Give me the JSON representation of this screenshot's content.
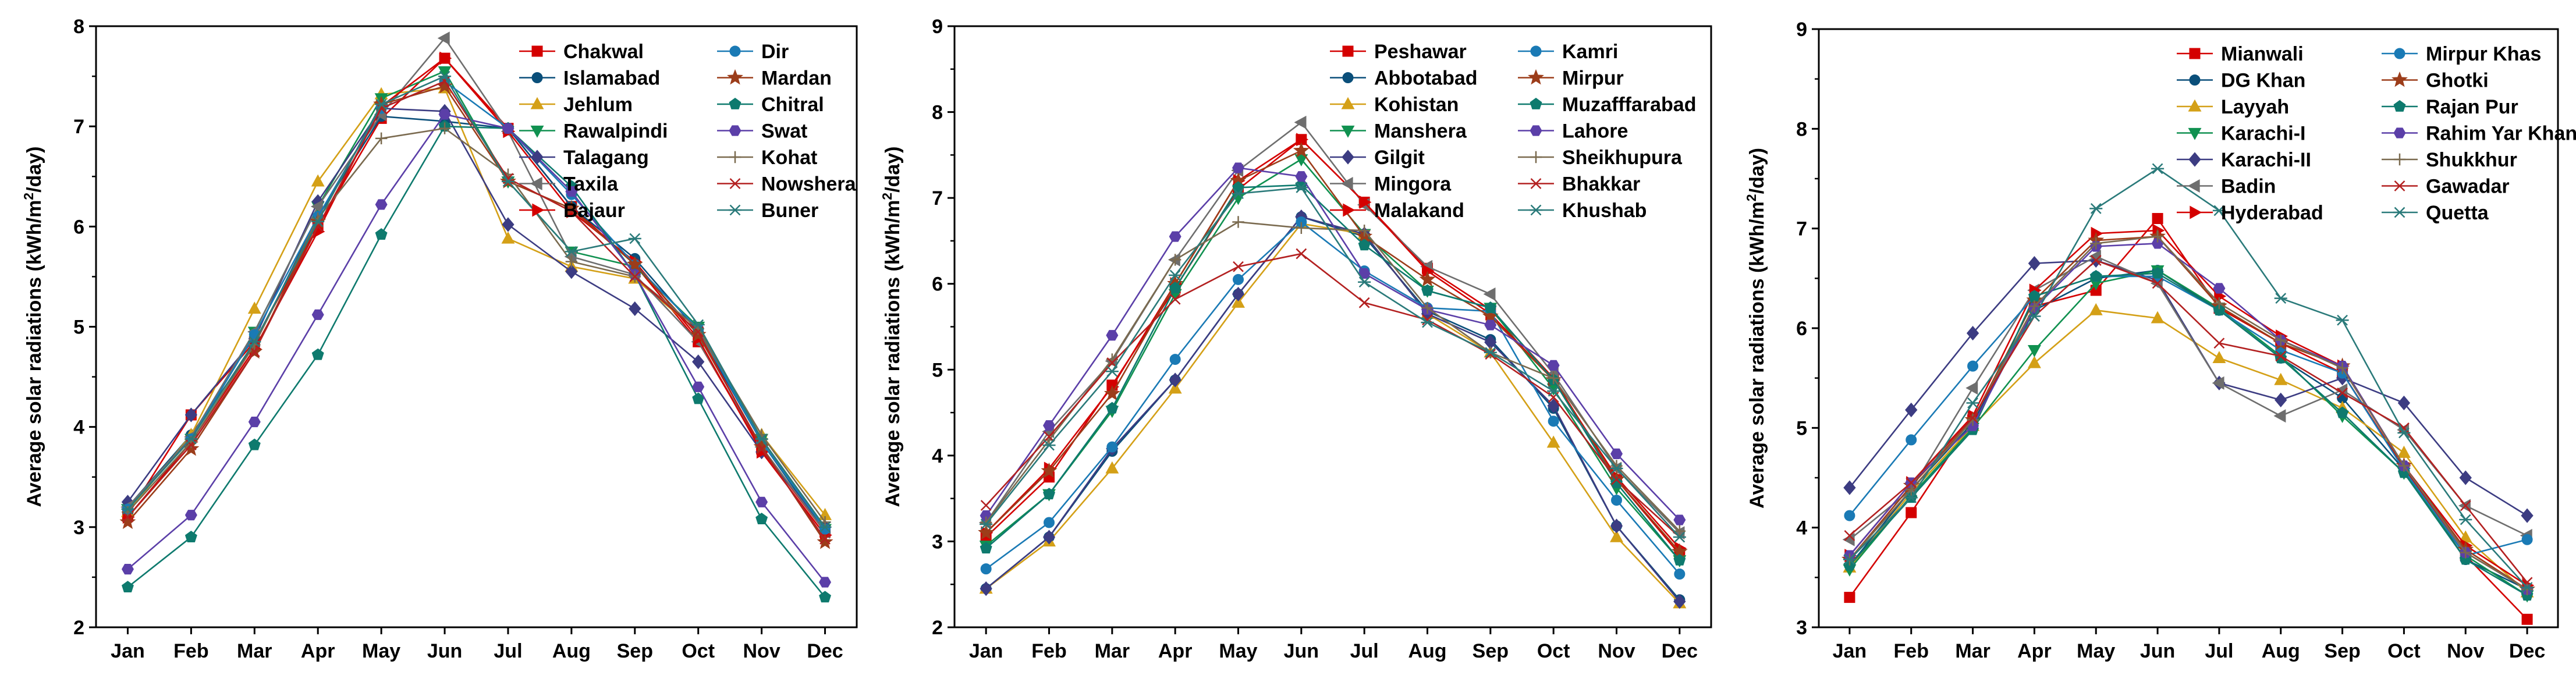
{
  "chart_data": [
    {
      "type": "line",
      "title": "",
      "xlabel": "",
      "ylabel": "Average solar radiations (kWh/m²/day)",
      "ylabel_parts": [
        "Average solar radiations (kWh/m",
        "2",
        "/day)"
      ],
      "ylim": [
        2,
        8
      ],
      "yticks": [
        "2",
        "3",
        "4",
        "5",
        "6",
        "7",
        "8"
      ],
      "categories": [
        "Jan",
        "Feb",
        "Mar",
        "Apr",
        "May",
        "Jun",
        "Jul",
        "Aug",
        "Sep",
        "Oct",
        "Nov",
        "Dec"
      ],
      "legend_position": "top-right",
      "series": [
        {
          "name": "Chakwal",
          "color": "#d40000",
          "marker": "square",
          "values": [
            3.12,
            4.12,
            4.85,
            6.0,
            7.08,
            7.68,
            6.98,
            6.2,
            5.62,
            4.85,
            3.78,
            2.95
          ]
        },
        {
          "name": "Islamabad",
          "color": "#0a4f7a",
          "marker": "circle",
          "values": [
            3.2,
            3.92,
            4.82,
            6.1,
            7.1,
            7.05,
            6.98,
            6.2,
            5.68,
            4.95,
            3.85,
            2.95
          ]
        },
        {
          "name": "Jehlum",
          "color": "#d4a017",
          "marker": "triangle",
          "values": [
            3.15,
            3.92,
            5.18,
            6.45,
            7.32,
            7.38,
            5.88,
            5.6,
            5.48,
            4.95,
            3.92,
            3.12
          ]
        },
        {
          "name": "Rawalpindi",
          "color": "#109150",
          "marker": "tridown",
          "values": [
            3.18,
            3.88,
            4.95,
            6.2,
            7.28,
            7.55,
            6.45,
            5.75,
            5.6,
            5.0,
            3.88,
            2.98
          ]
        },
        {
          "name": "Talagang",
          "color": "#3c3c82",
          "marker": "diamond",
          "values": [
            3.25,
            4.12,
            4.88,
            6.25,
            7.18,
            7.15,
            6.02,
            5.55,
            5.18,
            4.65,
            3.75,
            3.0
          ]
        },
        {
          "name": "Taxila",
          "color": "#6e6e6e",
          "marker": "triangle-left",
          "values": [
            3.2,
            3.9,
            4.95,
            6.2,
            7.12,
            7.88,
            6.95,
            5.7,
            5.52,
            4.85,
            3.8,
            2.95
          ]
        },
        {
          "name": "Bajaur",
          "color": "#d40000",
          "marker": "triangle-right",
          "values": [
            3.1,
            3.85,
            4.78,
            5.95,
            7.2,
            7.68,
            6.95,
            6.15,
            5.65,
            4.88,
            3.75,
            2.92
          ]
        },
        {
          "name": "Dir",
          "color": "#1a7ab5",
          "marker": "circle",
          "values": [
            3.18,
            3.88,
            4.92,
            6.1,
            7.18,
            7.45,
            6.98,
            6.32,
            5.62,
            4.98,
            3.85,
            2.98
          ]
        },
        {
          "name": "Mardan",
          "color": "#9c3d1a",
          "marker": "star",
          "values": [
            3.05,
            3.78,
            4.75,
            6.05,
            7.22,
            7.4,
            6.45,
            6.18,
            5.62,
            4.92,
            3.8,
            2.85
          ]
        },
        {
          "name": "Chitral",
          "color": "#0e7a6e",
          "marker": "pentagon",
          "values": [
            2.4,
            2.9,
            3.82,
            4.72,
            5.92,
            7.0,
            6.98,
            6.4,
            5.52,
            4.28,
            3.08,
            2.3
          ]
        },
        {
          "name": "Swat",
          "color": "#5b3fa8",
          "marker": "hexagon",
          "values": [
            2.58,
            3.12,
            4.05,
            5.12,
            6.22,
            7.12,
            6.98,
            6.35,
            5.52,
            4.4,
            3.25,
            2.45
          ]
        },
        {
          "name": "Kohat",
          "color": "#7a6a4f",
          "marker": "plus",
          "values": [
            3.15,
            3.85,
            4.82,
            6.08,
            6.88,
            6.98,
            6.52,
            5.65,
            5.5,
            4.98,
            3.92,
            3.05
          ]
        },
        {
          "name": "Nowshera",
          "color": "#b32020",
          "marker": "x",
          "values": [
            3.1,
            3.82,
            4.75,
            6.0,
            7.18,
            7.45,
            6.48,
            6.15,
            5.5,
            4.95,
            3.78,
            2.88
          ]
        },
        {
          "name": "Buner",
          "color": "#2a7a7a",
          "marker": "asterisk",
          "values": [
            3.18,
            3.88,
            4.85,
            6.05,
            7.22,
            7.5,
            6.45,
            5.75,
            5.88,
            5.02,
            3.88,
            3.0
          ]
        }
      ]
    },
    {
      "type": "line",
      "title": "",
      "xlabel": "",
      "ylabel": "Average solar radiations (kWh/m²/day)",
      "ylabel_parts": [
        "Average solar radiations (kWh/m",
        "2",
        "/day)"
      ],
      "ylim": [
        2,
        9
      ],
      "yticks": [
        "2",
        "3",
        "4",
        "5",
        "6",
        "7",
        "8",
        "9"
      ],
      "categories": [
        "Jan",
        "Feb",
        "Mar",
        "Apr",
        "May",
        "Jun",
        "Jul",
        "Aug",
        "Sep",
        "Oct",
        "Nov",
        "Dec"
      ],
      "legend_position": "top-right",
      "series": [
        {
          "name": "Peshawar",
          "color": "#d40000",
          "marker": "square",
          "values": [
            3.05,
            3.75,
            4.82,
            5.95,
            7.1,
            7.68,
            6.95,
            6.18,
            5.7,
            4.9,
            3.72,
            2.85
          ]
        },
        {
          "name": "Abbotabad",
          "color": "#0a4f7a",
          "marker": "circle",
          "values": [
            2.45,
            3.05,
            4.05,
            4.88,
            5.88,
            6.78,
            6.55,
            5.68,
            5.35,
            4.55,
            3.18,
            2.32
          ]
        },
        {
          "name": "Kohistan",
          "color": "#d4a017",
          "marker": "triangle",
          "values": [
            2.45,
            3.0,
            3.85,
            4.78,
            5.78,
            6.7,
            6.58,
            5.65,
            5.2,
            4.15,
            3.05,
            2.28
          ]
        },
        {
          "name": "Manshera",
          "color": "#109150",
          "marker": "tridown",
          "values": [
            2.95,
            3.55,
            4.52,
            5.88,
            7.0,
            7.45,
            6.58,
            5.92,
            5.72,
            4.78,
            3.62,
            2.78
          ]
        },
        {
          "name": "Gilgit",
          "color": "#3c3c82",
          "marker": "diamond",
          "values": [
            2.45,
            3.05,
            4.08,
            4.88,
            5.88,
            6.78,
            6.58,
            5.65,
            5.32,
            4.58,
            3.18,
            2.3
          ]
        },
        {
          "name": "Mingora",
          "color": "#6e6e6e",
          "marker": "triangle-left",
          "values": [
            3.22,
            4.28,
            5.1,
            6.28,
            7.32,
            7.88,
            6.92,
            6.2,
            5.88,
            4.95,
            3.85,
            3.1
          ]
        },
        {
          "name": "Malakand",
          "color": "#d40000",
          "marker": "triangle-right",
          "values": [
            3.1,
            3.85,
            4.8,
            6.0,
            7.2,
            7.68,
            6.95,
            6.15,
            5.65,
            4.88,
            3.75,
            2.92
          ]
        },
        {
          "name": "Kamri",
          "color": "#1a7ab5",
          "marker": "circle",
          "values": [
            2.68,
            3.22,
            4.1,
            5.12,
            6.05,
            6.72,
            6.15,
            5.72,
            5.68,
            4.4,
            3.48,
            2.62
          ]
        },
        {
          "name": "Mirpur",
          "color": "#9c3d1a",
          "marker": "star",
          "values": [
            3.1,
            3.82,
            4.72,
            6.0,
            7.2,
            7.55,
            6.55,
            6.05,
            5.62,
            4.88,
            3.72,
            2.88
          ]
        },
        {
          "name": "Muzafffarabad",
          "color": "#0e7a6e",
          "marker": "pentagon",
          "values": [
            2.92,
            3.55,
            4.55,
            5.95,
            7.12,
            7.15,
            6.45,
            5.92,
            5.72,
            4.88,
            3.68,
            2.78
          ]
        },
        {
          "name": "Lahore",
          "color": "#5b3fa8",
          "marker": "hexagon",
          "values": [
            3.3,
            4.35,
            5.4,
            6.55,
            7.35,
            7.25,
            6.12,
            5.7,
            5.52,
            5.05,
            4.02,
            3.25
          ]
        },
        {
          "name": "Sheikhupura",
          "color": "#7a6a4f",
          "marker": "plus",
          "values": [
            3.22,
            4.18,
            5.12,
            6.28,
            6.72,
            6.65,
            6.62,
            5.72,
            5.2,
            4.9,
            3.88,
            3.12
          ]
        },
        {
          "name": "Bhakkar",
          "color": "#b32020",
          "marker": "x",
          "values": [
            3.42,
            4.22,
            5.08,
            5.82,
            6.2,
            6.35,
            5.78,
            5.58,
            5.18,
            4.68,
            3.72,
            3.05
          ]
        },
        {
          "name": "Khushab",
          "color": "#2a7a7a",
          "marker": "asterisk",
          "values": [
            3.2,
            4.12,
            4.98,
            6.1,
            7.05,
            7.12,
            6.02,
            5.55,
            5.2,
            4.75,
            3.85,
            3.05
          ]
        }
      ]
    },
    {
      "type": "line",
      "title": "",
      "xlabel": "",
      "ylabel": "Average solar radiations (kWh/m²/day)",
      "ylabel_parts": [
        "Average solar radiations (kWh/m",
        "2",
        "/day)"
      ],
      "ylim": [
        3,
        9
      ],
      "yticks": [
        "3",
        "4",
        "5",
        "6",
        "7",
        "8",
        "9"
      ],
      "categories": [
        "Jan",
        "Feb",
        "Mar",
        "Apr",
        "May",
        "Jun",
        "Jul",
        "Aug",
        "Sep",
        "Oct",
        "Nov",
        "Dec"
      ],
      "legend_position": "top-right",
      "series": [
        {
          "name": "Mianwali",
          "color": "#d40000",
          "marker": "square",
          "values": [
            3.3,
            4.15,
            5.08,
            6.22,
            6.38,
            7.1,
            6.2,
            5.85,
            5.55,
            4.6,
            3.72,
            3.08
          ]
        },
        {
          "name": "DG Khan",
          "color": "#0a4f7a",
          "marker": "circle",
          "values": [
            3.62,
            4.38,
            5.05,
            6.18,
            6.5,
            6.58,
            6.18,
            5.7,
            5.3,
            4.58,
            3.68,
            3.38
          ]
        },
        {
          "name": "Layyah",
          "color": "#d4a017",
          "marker": "triangle",
          "values": [
            3.6,
            4.35,
            5.02,
            5.65,
            6.18,
            6.1,
            5.7,
            5.48,
            5.2,
            4.75,
            3.9,
            3.35
          ]
        },
        {
          "name": "Karachi-I",
          "color": "#109150",
          "marker": "tridown",
          "values": [
            3.58,
            4.32,
            5.0,
            5.78,
            6.45,
            6.58,
            6.2,
            5.72,
            5.12,
            4.55,
            3.72,
            3.32
          ]
        },
        {
          "name": "Karachi-II",
          "color": "#3c3c82",
          "marker": "diamond",
          "values": [
            4.4,
            5.18,
            5.95,
            6.65,
            6.68,
            6.48,
            5.45,
            5.28,
            5.5,
            5.25,
            4.5,
            4.12
          ]
        },
        {
          "name": "Badin",
          "color": "#6e6e6e",
          "marker": "triangle-left",
          "values": [
            3.88,
            4.38,
            5.4,
            6.38,
            6.72,
            6.45,
            5.45,
            5.12,
            5.38,
            4.98,
            4.22,
            3.92
          ]
        },
        {
          "name": "Hyderabad",
          "color": "#d40000",
          "marker": "triangle-right",
          "values": [
            3.72,
            4.45,
            5.12,
            6.38,
            6.95,
            6.98,
            6.32,
            5.92,
            5.62,
            4.62,
            3.82,
            3.42
          ]
        },
        {
          "name": "Mirpur Khas",
          "color": "#1a7ab5",
          "marker": "circle",
          "values": [
            4.12,
            4.88,
            5.62,
            6.32,
            6.52,
            6.52,
            6.18,
            5.78,
            5.55,
            4.58,
            3.72,
            3.88
          ]
        },
        {
          "name": "Ghotki",
          "color": "#9c3d1a",
          "marker": "star",
          "values": [
            3.68,
            4.42,
            5.08,
            6.28,
            6.88,
            6.92,
            6.22,
            5.85,
            5.62,
            4.62,
            3.78,
            3.38
          ]
        },
        {
          "name": "Rajan Pur",
          "color": "#0e7a6e",
          "marker": "pentagon",
          "values": [
            3.62,
            4.3,
            4.98,
            6.32,
            6.52,
            6.55,
            6.18,
            5.7,
            5.15,
            4.55,
            3.68,
            3.32
          ]
        },
        {
          "name": "Rahim Yar Khan",
          "color": "#5b3fa8",
          "marker": "hexagon",
          "values": [
            3.72,
            4.45,
            5.02,
            6.2,
            6.82,
            6.85,
            6.4,
            5.88,
            5.62,
            4.62,
            3.75,
            3.38
          ]
        },
        {
          "name": "Shukkhur",
          "color": "#7a6a4f",
          "marker": "plus",
          "values": [
            3.68,
            4.38,
            5.08,
            6.22,
            6.85,
            6.92,
            6.25,
            5.88,
            5.6,
            4.62,
            3.75,
            3.38
          ]
        },
        {
          "name": "Gawadar",
          "color": "#b32020",
          "marker": "x",
          "values": [
            3.92,
            4.45,
            5.1,
            6.12,
            6.68,
            6.45,
            5.85,
            5.72,
            5.35,
            5.0,
            4.22,
            3.45
          ]
        },
        {
          "name": "Quetta",
          "color": "#2a7a7a",
          "marker": "asterisk",
          "values": [
            3.68,
            4.3,
            5.25,
            6.12,
            7.2,
            7.6,
            7.18,
            6.3,
            6.08,
            4.95,
            4.08,
            3.4
          ]
        }
      ]
    }
  ]
}
